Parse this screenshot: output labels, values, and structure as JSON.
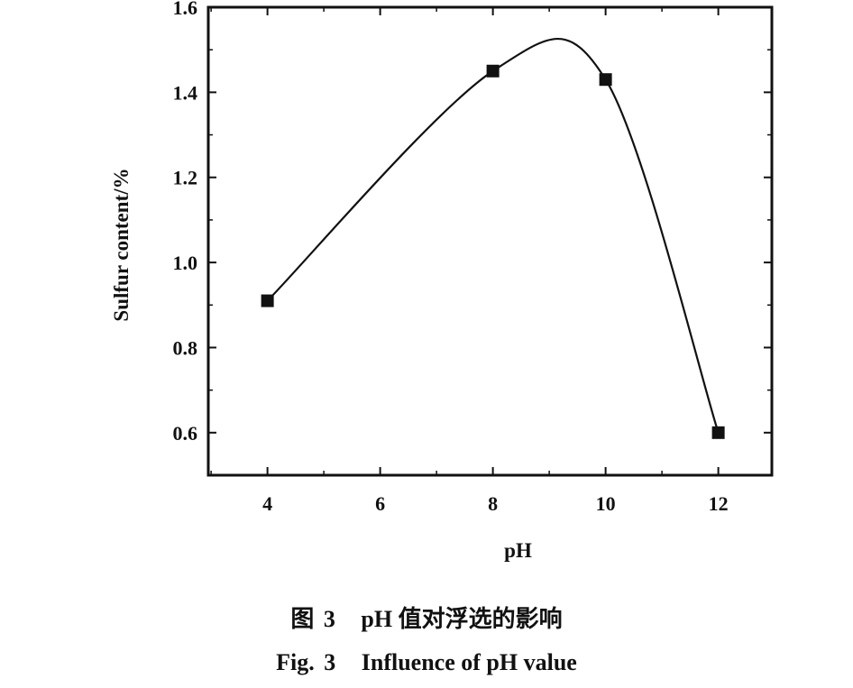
{
  "chart_data": {
    "type": "line",
    "x": [
      4,
      8,
      10,
      12
    ],
    "series": [
      {
        "values": [
          0.91,
          1.45,
          1.43,
          0.6
        ]
      }
    ],
    "xlabel": "pH",
    "ylabel": "Sulfur content/%",
    "xticks": [
      "4",
      "6",
      "8",
      "10",
      "12"
    ],
    "yticks": [
      "0.6",
      "0.8",
      "1.0",
      "1.2",
      "1.4",
      "1.6"
    ],
    "xlim": [
      2.95,
      12.95
    ],
    "ylim": [
      0.5,
      1.6
    ],
    "grid": false,
    "marker": "square",
    "smooth": true,
    "line_color": "#111111"
  },
  "caption": {
    "cn_prefix": "图",
    "cn_number": "3",
    "cn_text": "pH 值对浮选的影响",
    "en_prefix": "Fig.",
    "en_number": "3",
    "en_text": "Influence of pH value"
  }
}
